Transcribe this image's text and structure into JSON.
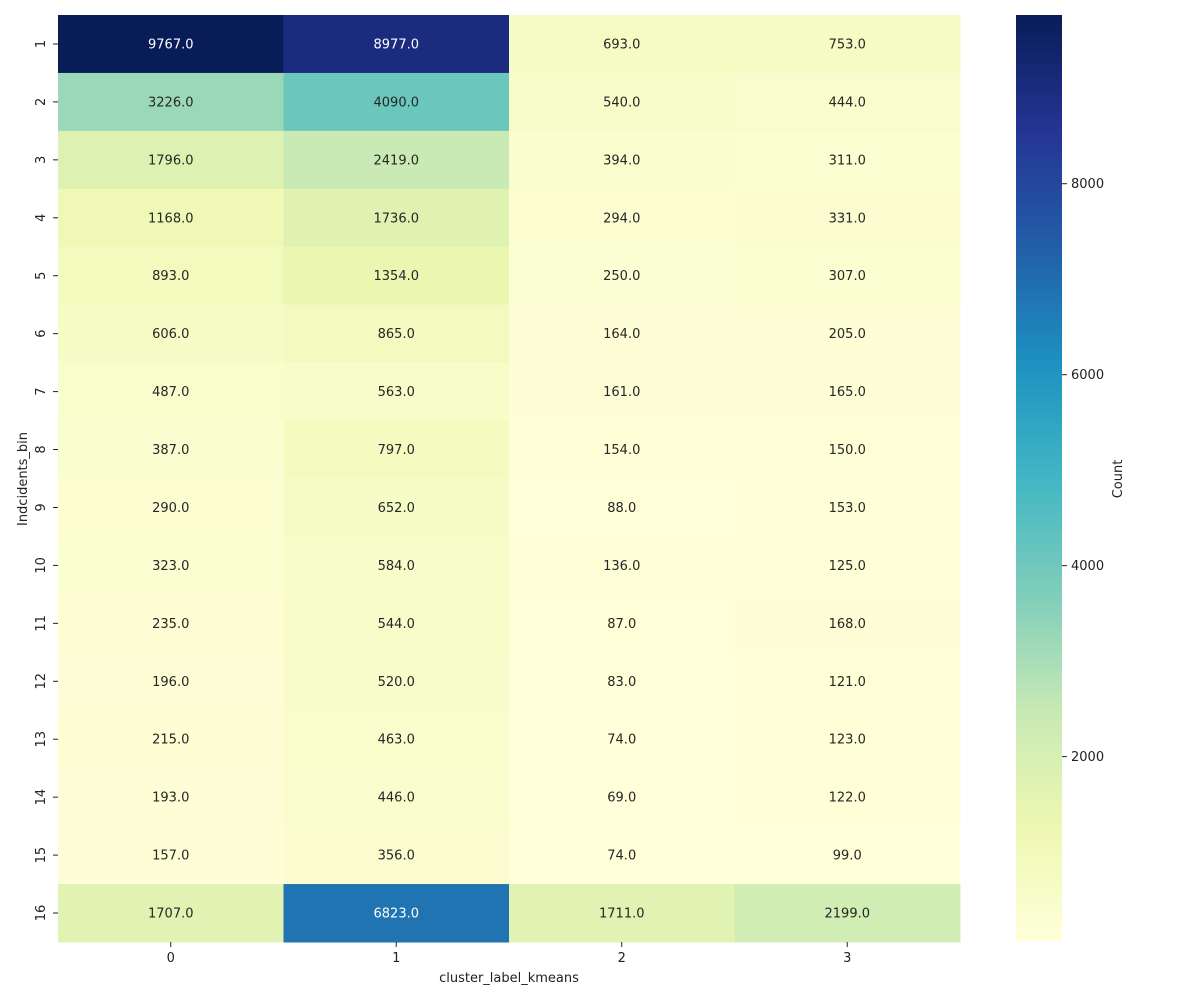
{
  "chart_data": {
    "type": "heatmap",
    "title": "",
    "xlabel": "cluster_label_kmeans",
    "ylabel": "Indcidents_bin",
    "x_categories": [
      "0",
      "1",
      "2",
      "3"
    ],
    "y_categories": [
      "1",
      "2",
      "3",
      "4",
      "5",
      "6",
      "7",
      "8",
      "9",
      "10",
      "11",
      "12",
      "13",
      "14",
      "15",
      "16"
    ],
    "values": [
      [
        9767.0,
        8977.0,
        693.0,
        753.0
      ],
      [
        3226.0,
        4090.0,
        540.0,
        444.0
      ],
      [
        1796.0,
        2419.0,
        394.0,
        311.0
      ],
      [
        1168.0,
        1736.0,
        294.0,
        331.0
      ],
      [
        893.0,
        1354.0,
        250.0,
        307.0
      ],
      [
        606.0,
        865.0,
        164.0,
        205.0
      ],
      [
        487.0,
        563.0,
        161.0,
        165.0
      ],
      [
        387.0,
        797.0,
        154.0,
        150.0
      ],
      [
        290.0,
        652.0,
        88.0,
        153.0
      ],
      [
        323.0,
        584.0,
        136.0,
        125.0
      ],
      [
        235.0,
        544.0,
        87.0,
        168.0
      ],
      [
        196.0,
        520.0,
        83.0,
        121.0
      ],
      [
        215.0,
        463.0,
        74.0,
        123.0
      ],
      [
        193.0,
        446.0,
        69.0,
        122.0
      ],
      [
        157.0,
        356.0,
        74.0,
        99.0
      ],
      [
        1707.0,
        6823.0,
        1711.0,
        2199.0
      ]
    ],
    "value_format": "0.1f",
    "colormap": "YlGnBu",
    "colormap_stops": [
      "#ffffd9",
      "#edf8b1",
      "#c7e9b4",
      "#7fcdbb",
      "#41b6c4",
      "#1d91c0",
      "#225ea8",
      "#253494",
      "#081d58"
    ],
    "colorbar": {
      "label": "Count",
      "min": 69.0,
      "max": 9767.0,
      "ticks": [
        2000,
        4000,
        6000,
        8000
      ],
      "tick_labels": [
        "2000",
        "4000",
        "6000",
        "8000"
      ]
    },
    "grid": false,
    "legend": "colorbar-right"
  }
}
